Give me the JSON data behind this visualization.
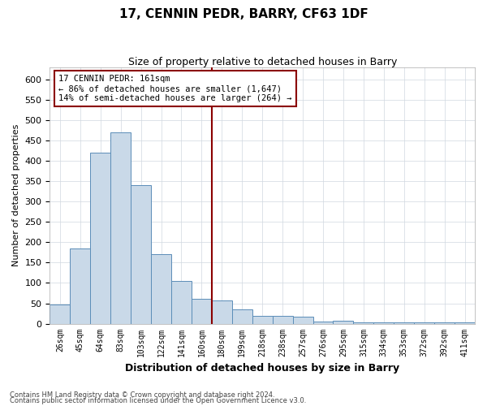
{
  "title": "17, CENNIN PEDR, BARRY, CF63 1DF",
  "subtitle": "Size of property relative to detached houses in Barry",
  "xlabel": "Distribution of detached houses by size in Barry",
  "ylabel": "Number of detached properties",
  "categories": [
    "26sqm",
    "45sqm",
    "64sqm",
    "83sqm",
    "103sqm",
    "122sqm",
    "141sqm",
    "160sqm",
    "180sqm",
    "199sqm",
    "218sqm",
    "238sqm",
    "257sqm",
    "276sqm",
    "295sqm",
    "315sqm",
    "334sqm",
    "353sqm",
    "372sqm",
    "392sqm",
    "411sqm"
  ],
  "values": [
    47,
    185,
    420,
    470,
    340,
    170,
    105,
    62,
    58,
    35,
    20,
    20,
    18,
    5,
    7,
    4,
    3,
    3,
    3,
    3,
    3
  ],
  "bar_color": "#c9d9e8",
  "bar_edge_color": "#5b8db8",
  "property_line_color": "#8b0000",
  "annotation_text": "17 CENNIN PEDR: 161sqm\n← 86% of detached houses are smaller (1,647)\n14% of semi-detached houses are larger (264) →",
  "annotation_box_color": "#8b0000",
  "ylim": [
    0,
    630
  ],
  "yticks": [
    0,
    50,
    100,
    150,
    200,
    250,
    300,
    350,
    400,
    450,
    500,
    550,
    600
  ],
  "footer_line1": "Contains HM Land Registry data © Crown copyright and database right 2024.",
  "footer_line2": "Contains public sector information licensed under the Open Government Licence v3.0.",
  "background_color": "#ffffff",
  "grid_color": "#d0d8e0"
}
